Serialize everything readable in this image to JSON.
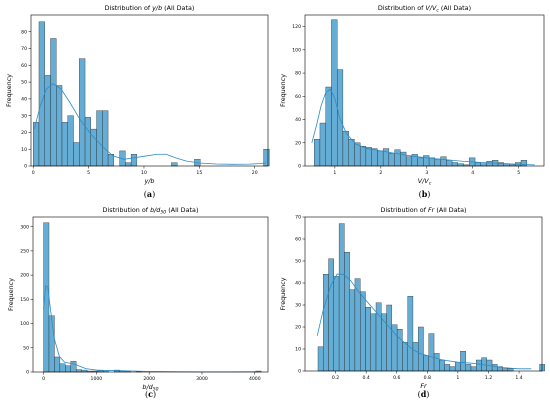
{
  "chart_data": [
    {
      "type": "bar",
      "title_pre": "Distribution of ",
      "title_var": "y/b",
      "title_post": " (All Data)",
      "xlabel": "y/b",
      "ylabel": "Frequency",
      "caption": "(a)",
      "xlim": [
        -0.2,
        21.2
      ],
      "ylim": [
        0,
        90
      ],
      "xticks": [
        0,
        5,
        10,
        15,
        20
      ],
      "yticks": [
        0,
        10,
        20,
        30,
        40,
        50,
        60,
        70,
        80
      ],
      "bin_start": 0.0,
      "bin_width": 0.52,
      "values": [
        26,
        86,
        54,
        76,
        48,
        26,
        30,
        14,
        64,
        29,
        22,
        33,
        33,
        7,
        0,
        9,
        2,
        7,
        0,
        0,
        0,
        0,
        0,
        0,
        2,
        0,
        0,
        0,
        4,
        0,
        0,
        0,
        0,
        0,
        0,
        0,
        0,
        0,
        0,
        0,
        10
      ],
      "kde": [
        [
          0.1,
          22
        ],
        [
          0.6,
          35
        ],
        [
          1.2,
          46
        ],
        [
          1.8,
          49
        ],
        [
          2.5,
          46
        ],
        [
          3.3,
          38
        ],
        [
          4.2,
          28
        ],
        [
          5.2,
          19
        ],
        [
          6.2,
          12
        ],
        [
          7.2,
          6
        ],
        [
          8.2,
          4
        ],
        [
          9.2,
          5
        ],
        [
          10.2,
          6
        ],
        [
          11.2,
          7
        ],
        [
          12.0,
          7
        ],
        [
          12.8,
          5
        ],
        [
          13.8,
          3
        ],
        [
          15,
          1.8
        ],
        [
          16.5,
          1.2
        ],
        [
          18,
          1
        ],
        [
          19.5,
          1.1
        ],
        [
          20.5,
          1.5
        ],
        [
          21,
          1.8
        ]
      ]
    },
    {
      "type": "bar",
      "title_pre": "Distribution of ",
      "title_var": "V/V",
      "title_sub": "c",
      "title_post": " (All Data)",
      "xlabel": "V/V",
      "xlabel_sub": "c",
      "ylabel": "Frequency",
      "caption": "(b)",
      "xlim": [
        0.35,
        5.55
      ],
      "ylim": [
        0,
        130
      ],
      "xticks": [
        1,
        2,
        3,
        4,
        5
      ],
      "yticks": [
        0,
        20,
        40,
        60,
        80,
        100,
        120
      ],
      "bin_start": 0.55,
      "bin_width": 0.125,
      "values": [
        23,
        37,
        68,
        126,
        83,
        30,
        23,
        20,
        17,
        16,
        15,
        13,
        15,
        11,
        14,
        12,
        8,
        10,
        7,
        9,
        7,
        6,
        8,
        5,
        3,
        2,
        1,
        7,
        3,
        2,
        4,
        5,
        3,
        2,
        1,
        3,
        5
      ],
      "kde": [
        [
          0.5,
          20
        ],
        [
          0.6,
          35
        ],
        [
          0.7,
          52
        ],
        [
          0.8,
          63
        ],
        [
          0.9,
          66
        ],
        [
          1.0,
          58
        ],
        [
          1.1,
          42
        ],
        [
          1.25,
          28
        ],
        [
          1.45,
          19
        ],
        [
          1.7,
          15
        ],
        [
          2.0,
          13
        ],
        [
          2.3,
          11
        ],
        [
          2.6,
          9
        ],
        [
          3.0,
          7
        ],
        [
          3.4,
          5.5
        ],
        [
          3.8,
          4
        ],
        [
          4.2,
          3
        ],
        [
          4.6,
          2.2
        ],
        [
          5.0,
          1.5
        ],
        [
          5.35,
          1
        ]
      ]
    },
    {
      "type": "bar",
      "title_pre": "Distribution of ",
      "title_var": "b/d",
      "title_sub": "50",
      "title_post": " (All Data)",
      "xlabel": "b/d",
      "xlabel_sub": "50",
      "ylabel": "Frequency",
      "caption": "(c)",
      "xlim": [
        -200,
        4250
      ],
      "ylim": [
        0,
        320
      ],
      "xticks": [
        0,
        1000,
        2000,
        3000,
        4000
      ],
      "yticks": [
        0,
        50,
        100,
        150,
        200,
        250,
        300
      ],
      "bin_start": 0,
      "bin_width": 103,
      "values": [
        308,
        116,
        31,
        17,
        13,
        22,
        5,
        4,
        2,
        2,
        3,
        1,
        0,
        4,
        1,
        1,
        0,
        1,
        0,
        0,
        0,
        0,
        0,
        0,
        0,
        0,
        0,
        0,
        0,
        0,
        0,
        0,
        0,
        0,
        0,
        0,
        0,
        0,
        0,
        2
      ],
      "kde": [
        [
          0,
          130
        ],
        [
          40,
          178
        ],
        [
          80,
          175
        ],
        [
          130,
          130
        ],
        [
          200,
          70
        ],
        [
          300,
          32
        ],
        [
          400,
          20
        ],
        [
          500,
          18
        ],
        [
          600,
          16
        ],
        [
          700,
          11
        ],
        [
          800,
          7
        ],
        [
          1000,
          4
        ],
        [
          1200,
          3
        ],
        [
          1400,
          3
        ],
        [
          1700,
          2
        ],
        [
          2000,
          1
        ],
        [
          2500,
          0.5
        ],
        [
          3000,
          0.3
        ],
        [
          3500,
          0.3
        ],
        [
          4100,
          0.5
        ]
      ]
    },
    {
      "type": "bar",
      "title_pre": "Distribution of ",
      "title_var": "Fr",
      "title_post": " (All Data)",
      "xlabel": "Fr",
      "ylabel": "Frequency",
      "caption": "(d)",
      "xlim": [
        0.0,
        1.55
      ],
      "ylim": [
        0,
        70
      ],
      "xticks": [
        0.2,
        0.4,
        0.6,
        0.8,
        1.0,
        1.2,
        1.4
      ],
      "yticks": [
        0,
        10,
        20,
        30,
        40,
        50,
        60,
        70
      ],
      "bin_start": 0.085,
      "bin_width": 0.0345,
      "values": [
        11,
        44,
        51,
        43,
        67,
        54,
        37,
        42,
        36,
        29,
        26,
        31,
        26,
        30,
        21,
        19,
        13,
        34,
        13,
        20,
        7,
        17,
        8,
        5,
        3,
        2,
        4,
        9,
        3,
        2,
        5,
        6,
        5,
        3,
        2,
        1,
        1,
        0,
        0,
        0,
        0,
        0,
        3
      ],
      "kde": [
        [
          0.08,
          16
        ],
        [
          0.12,
          28
        ],
        [
          0.17,
          39
        ],
        [
          0.21,
          44
        ],
        [
          0.25,
          44
        ],
        [
          0.3,
          41
        ],
        [
          0.35,
          36
        ],
        [
          0.4,
          32
        ],
        [
          0.45,
          28
        ],
        [
          0.5,
          24
        ],
        [
          0.55,
          20
        ],
        [
          0.6,
          16
        ],
        [
          0.65,
          13
        ],
        [
          0.7,
          10
        ],
        [
          0.75,
          8
        ],
        [
          0.8,
          7
        ],
        [
          0.85,
          6
        ],
        [
          0.9,
          5
        ],
        [
          1.0,
          4
        ],
        [
          1.1,
          3.5
        ],
        [
          1.2,
          2.5
        ],
        [
          1.3,
          1.5
        ],
        [
          1.4,
          1
        ],
        [
          1.48,
          1
        ]
      ]
    }
  ]
}
